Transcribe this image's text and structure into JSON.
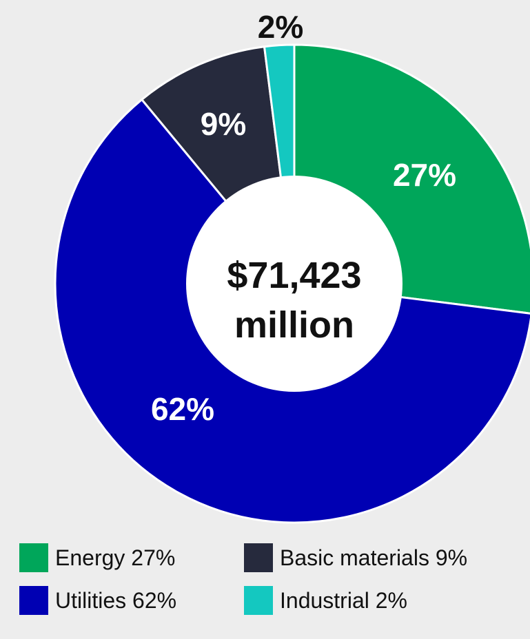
{
  "chart_data": {
    "type": "pie",
    "center_label": [
      "$71,423",
      "million"
    ],
    "slices": [
      {
        "label": "Energy",
        "value": 27,
        "display": "27%",
        "legend": "Energy 27%",
        "color": "#00a65a"
      },
      {
        "label": "Utilities",
        "value": 62,
        "display": "62%",
        "legend": "Utilities 62%",
        "color": "#0000b3"
      },
      {
        "label": "Basic materials",
        "value": 9,
        "display": "9%",
        "legend": "Basic materials 9%",
        "color": "#262a3d"
      },
      {
        "label": "Industrial",
        "value": 2,
        "display": "2%",
        "legend": "Industrial 2%",
        "color": "#14c8c0"
      }
    ],
    "legend_position": "bottom"
  }
}
